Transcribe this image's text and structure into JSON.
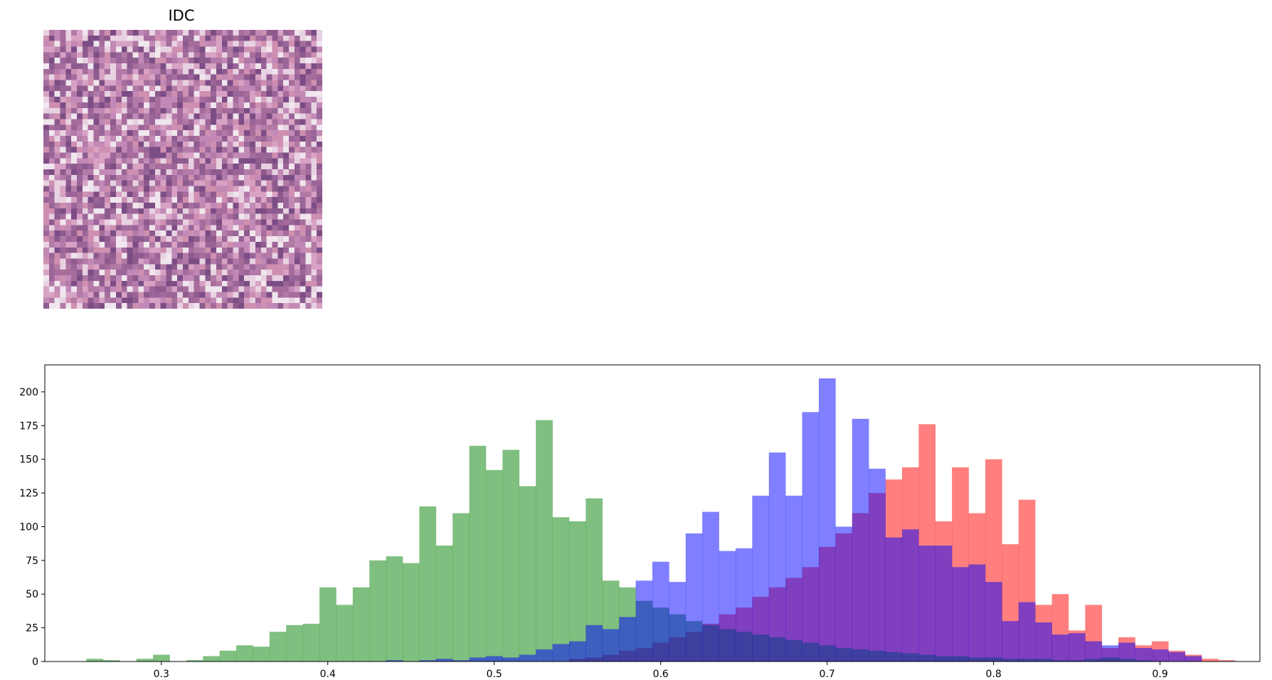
{
  "image_panel": {
    "title": "IDC",
    "grid_size": 50,
    "palette": [
      "#d7a2c4",
      "#c289b6",
      "#a66c9c",
      "#8e5b8e",
      "#e8d2e2",
      "#b27aa6",
      "#7c4d85",
      "#cf8fb0",
      "#f0e6ee",
      "#9a6598"
    ]
  },
  "chart_data": {
    "type": "histogram",
    "title": "",
    "xlabel": "",
    "ylabel": "",
    "xlim": [
      0.23,
      0.96
    ],
    "ylim": [
      0,
      220
    ],
    "xticks": [
      "0.3",
      "0.4",
      "0.5",
      "0.6",
      "0.7",
      "0.8",
      "0.9"
    ],
    "yticks": [
      "0",
      "25",
      "50",
      "75",
      "100",
      "125",
      "150",
      "175",
      "200"
    ],
    "bin_width": 0.01,
    "alpha": 0.5,
    "series": [
      {
        "color": "#ff0000",
        "x": [
          0.55,
          0.56,
          0.57,
          0.58,
          0.59,
          0.6,
          0.61,
          0.62,
          0.63,
          0.64,
          0.65,
          0.66,
          0.67,
          0.68,
          0.69,
          0.7,
          0.71,
          0.72,
          0.73,
          0.74,
          0.75,
          0.76,
          0.77,
          0.78,
          0.79,
          0.8,
          0.81,
          0.82,
          0.83,
          0.84,
          0.85,
          0.86,
          0.87,
          0.88,
          0.89,
          0.9,
          0.91,
          0.92,
          0.93,
          0.94
        ],
        "counts": [
          2,
          3,
          5,
          8,
          10,
          14,
          18,
          22,
          28,
          35,
          40,
          48,
          55,
          62,
          70,
          85,
          95,
          110,
          125,
          135,
          144,
          176,
          104,
          144,
          110,
          150,
          87,
          120,
          42,
          50,
          23,
          42,
          10,
          18,
          12,
          15,
          8,
          5,
          2,
          1
        ]
      },
      {
        "color": "#008000",
        "x": [
          0.26,
          0.27,
          0.28,
          0.29,
          0.3,
          0.31,
          0.32,
          0.33,
          0.34,
          0.35,
          0.36,
          0.37,
          0.38,
          0.39,
          0.4,
          0.41,
          0.42,
          0.43,
          0.44,
          0.45,
          0.46,
          0.47,
          0.48,
          0.49,
          0.5,
          0.51,
          0.52,
          0.53,
          0.54,
          0.55,
          0.56,
          0.57,
          0.58,
          0.59,
          0.6,
          0.61,
          0.62,
          0.63,
          0.64,
          0.65,
          0.66,
          0.67,
          0.68,
          0.69,
          0.7,
          0.71,
          0.72,
          0.73,
          0.74,
          0.75,
          0.76,
          0.77,
          0.78,
          0.79,
          0.8,
          0.81,
          0.82,
          0.83,
          0.84,
          0.85,
          0.86,
          0.87,
          0.88,
          0.89
        ],
        "counts": [
          2,
          1,
          0,
          2,
          5,
          0,
          1,
          4,
          8,
          12,
          11,
          22,
          27,
          28,
          55,
          42,
          55,
          75,
          78,
          73,
          115,
          86,
          110,
          160,
          142,
          157,
          130,
          179,
          107,
          104,
          121,
          60,
          55,
          45,
          40,
          35,
          30,
          27,
          24,
          22,
          20,
          18,
          16,
          14,
          12,
          10,
          9,
          8,
          7,
          6,
          5,
          4,
          4,
          3,
          3,
          2,
          2,
          2,
          1,
          1,
          2,
          3,
          2,
          1
        ]
      },
      {
        "color": "#0000ff",
        "x": [
          0.44,
          0.45,
          0.46,
          0.47,
          0.48,
          0.49,
          0.5,
          0.51,
          0.52,
          0.53,
          0.54,
          0.55,
          0.56,
          0.57,
          0.58,
          0.59,
          0.6,
          0.61,
          0.62,
          0.63,
          0.64,
          0.65,
          0.66,
          0.67,
          0.68,
          0.69,
          0.7,
          0.71,
          0.72,
          0.73,
          0.74,
          0.75,
          0.76,
          0.77,
          0.78,
          0.79,
          0.8,
          0.81,
          0.82,
          0.83,
          0.84,
          0.85,
          0.86,
          0.87,
          0.88,
          0.89,
          0.9,
          0.91,
          0.92
        ],
        "counts": [
          1,
          0,
          1,
          2,
          1,
          3,
          4,
          3,
          5,
          9,
          13,
          15,
          27,
          24,
          33,
          60,
          74,
          59,
          95,
          111,
          82,
          84,
          123,
          155,
          123,
          185,
          210,
          100,
          180,
          143,
          92,
          98,
          86,
          86,
          70,
          72,
          59,
          30,
          44,
          29,
          20,
          21,
          15,
          12,
          14,
          10,
          9,
          7,
          4
        ]
      }
    ]
  }
}
